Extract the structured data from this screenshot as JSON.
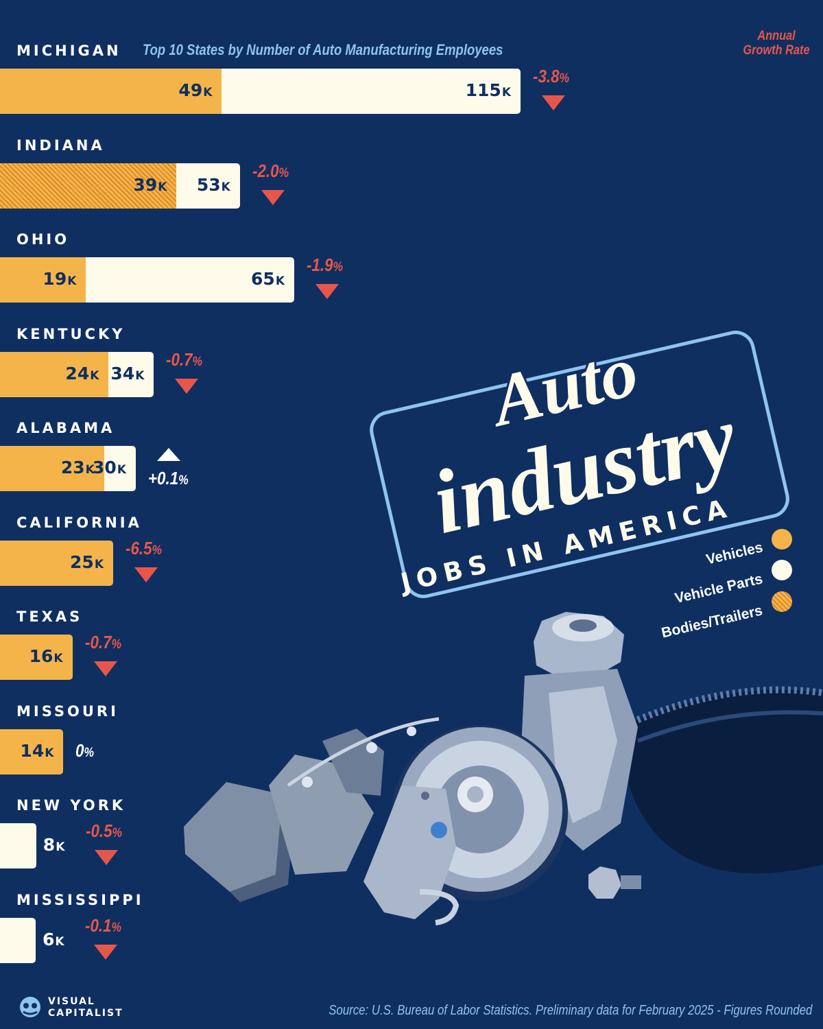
{
  "subtitle": "Top 10 States by Number of Auto Manufacturing Employees",
  "growth_header": [
    "Annual",
    "Growth Rate"
  ],
  "title": {
    "line1": "Auto",
    "line2": "industry",
    "line3": "JOBS IN AMERICA"
  },
  "legend": [
    {
      "label": "Vehicles",
      "color": "#f5b44a",
      "pattern": "solid"
    },
    {
      "label": "Vehicle Parts",
      "color": "#fffbeb",
      "pattern": "solid"
    },
    {
      "label": "Bodies/Trailers",
      "color": "#f5b44a",
      "pattern": "hatched"
    }
  ],
  "colors": {
    "background": "#0f2f61",
    "vehicles": "#f5b44a",
    "parts": "#fffbeb",
    "negative": "#e8564a",
    "subtitle": "#8fc3f0"
  },
  "source": "Source: U.S. Bureau of Labor Statistics. Preliminary data for February 2025 - Figures Rounded",
  "brand": [
    "VISUAL",
    "CAPITALIST"
  ],
  "chart_data": {
    "type": "bar",
    "orientation": "horizontal",
    "stacked": true,
    "unit": "K",
    "categories": [
      "MICHIGAN",
      "INDIANA",
      "OHIO",
      "KENTUCKY",
      "ALABAMA",
      "CALIFORNIA",
      "TEXAS",
      "MISSOURI",
      "NEW YORK",
      "MISSISSIPPI"
    ],
    "series": [
      {
        "name": "Vehicles",
        "values": [
          49,
          null,
          19,
          24,
          23,
          25,
          16,
          14,
          null,
          null
        ]
      },
      {
        "name": "Bodies/Trailers",
        "values": [
          null,
          39,
          null,
          null,
          null,
          null,
          null,
          null,
          null,
          null
        ]
      },
      {
        "name": "Vehicle Parts",
        "values": [
          115,
          53,
          65,
          34,
          30,
          null,
          null,
          null,
          8,
          6
        ]
      }
    ],
    "growth_rate": [
      "-3.8",
      "-2.0",
      "-1.9",
      "-0.7",
      "+0.1",
      "-6.5",
      "-0.7",
      "0",
      "-0.5",
      "-0.1"
    ],
    "growth_unit": "%"
  }
}
